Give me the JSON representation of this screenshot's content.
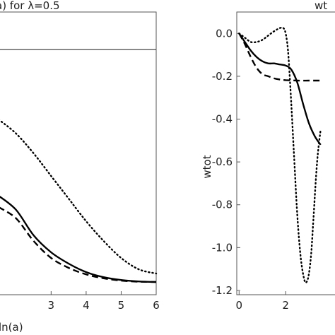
{
  "chart_data": [
    {
      "type": "line",
      "title": "a) for λ=0.5",
      "xlabel": "ln(a)",
      "ylabel": "",
      "xlim": [
        1.5,
        6
      ],
      "x_ticks": [
        3,
        4,
        5,
        6
      ],
      "x_tick_labels": [
        "3",
        "4",
        "5",
        "6"
      ],
      "ylim": [
        0,
        1
      ],
      "y_ticks": [],
      "grid": false,
      "horizontal_line": {
        "y": 0.867
      },
      "series": [
        {
          "style": "dotted",
          "x": [
            1.5,
            2.0,
            2.5,
            3.0,
            3.5,
            4.0,
            4.5,
            5.0,
            5.5,
            6.0
          ],
          "y": [
            0.62,
            0.57,
            0.5,
            0.42,
            0.34,
            0.26,
            0.19,
            0.13,
            0.09,
            0.075
          ]
        },
        {
          "style": "solid",
          "x": [
            1.5,
            2.0,
            2.5,
            3.0,
            3.5,
            4.0,
            4.5,
            5.0,
            5.5,
            6.0
          ],
          "y": [
            0.35,
            0.3,
            0.21,
            0.15,
            0.11,
            0.08,
            0.062,
            0.052,
            0.047,
            0.045
          ]
        },
        {
          "style": "dashed",
          "x": [
            1.5,
            2.0,
            2.5,
            3.0,
            3.5,
            4.0,
            4.5,
            5.0,
            5.5,
            6.0
          ],
          "y": [
            0.31,
            0.27,
            0.19,
            0.13,
            0.095,
            0.072,
            0.058,
            0.05,
            0.046,
            0.045
          ]
        }
      ]
    },
    {
      "type": "line",
      "title": "wt",
      "xlabel": "",
      "ylabel": "wtot",
      "xlim": [
        -0.1,
        4.3
      ],
      "ylim": [
        -1.22,
        0.1
      ],
      "x_ticks": [
        0,
        2
      ],
      "x_tick_labels": [
        "0",
        "2"
      ],
      "y_ticks": [
        0.0,
        -0.2,
        -0.4,
        -0.6,
        -0.8,
        -1.0,
        -1.2
      ],
      "y_tick_labels": [
        "0.0",
        "-0.2",
        "-0.4",
        "-0.6",
        "-0.8",
        "-1.0",
        "-1.2"
      ],
      "grid": false,
      "series": [
        {
          "style": "dotted",
          "x": [
            0,
            0.25,
            0.5,
            0.75,
            1.0,
            1.25,
            1.5,
            1.75,
            1.9,
            2.0,
            2.1,
            2.2,
            2.35,
            2.5,
            2.65,
            2.8,
            2.9,
            3.0,
            3.1,
            3.2,
            3.35,
            3.5
          ],
          "y": [
            0.0,
            -0.02,
            -0.04,
            -0.04,
            -0.03,
            -0.01,
            0.01,
            0.025,
            0.025,
            0.0,
            -0.08,
            -0.25,
            -0.55,
            -0.85,
            -1.05,
            -1.15,
            -1.16,
            -1.12,
            -1.02,
            -0.85,
            -0.6,
            -0.45
          ]
        },
        {
          "style": "solid",
          "x": [
            0,
            0.25,
            0.5,
            0.75,
            1.0,
            1.25,
            1.5,
            1.75,
            2.0,
            2.25,
            2.5,
            2.75,
            3.0,
            3.25,
            3.5
          ],
          "y": [
            0.0,
            -0.04,
            -0.08,
            -0.11,
            -0.13,
            -0.14,
            -0.14,
            -0.145,
            -0.15,
            -0.17,
            -0.23,
            -0.33,
            -0.42,
            -0.48,
            -0.52
          ]
        },
        {
          "style": "dashed",
          "x": [
            0,
            0.25,
            0.5,
            0.75,
            1.0,
            1.25,
            1.5,
            1.75,
            2.0,
            2.5,
            3.0,
            3.5
          ],
          "y": [
            0.0,
            -0.05,
            -0.11,
            -0.16,
            -0.19,
            -0.2,
            -0.21,
            -0.215,
            -0.218,
            -0.22,
            -0.22,
            -0.22
          ]
        }
      ]
    }
  ]
}
